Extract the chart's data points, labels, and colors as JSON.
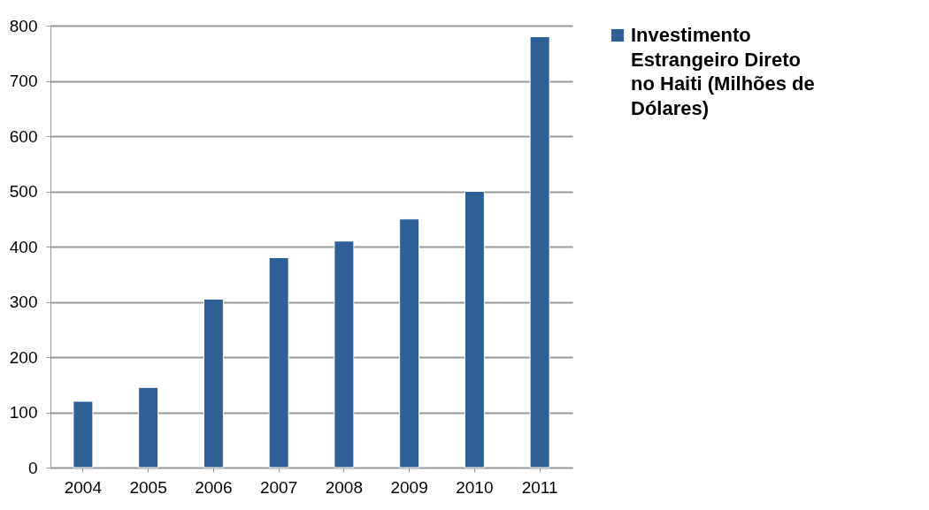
{
  "chart_data": {
    "type": "bar",
    "categories": [
      "2004",
      "2005",
      "2006",
      "2007",
      "2008",
      "2009",
      "2010",
      "2011"
    ],
    "series": [
      {
        "name": "Investimento Estrangeiro Direto no Haiti (Milhões de Dólares)",
        "color": "#2e6096",
        "values": [
          120,
          145,
          305,
          380,
          410,
          450,
          500,
          780
        ]
      }
    ],
    "ylim": [
      0,
      800
    ],
    "yticks": [
      0,
      100,
      200,
      300,
      400,
      500,
      600,
      700,
      800
    ],
    "grid": "y",
    "legend": "right"
  }
}
